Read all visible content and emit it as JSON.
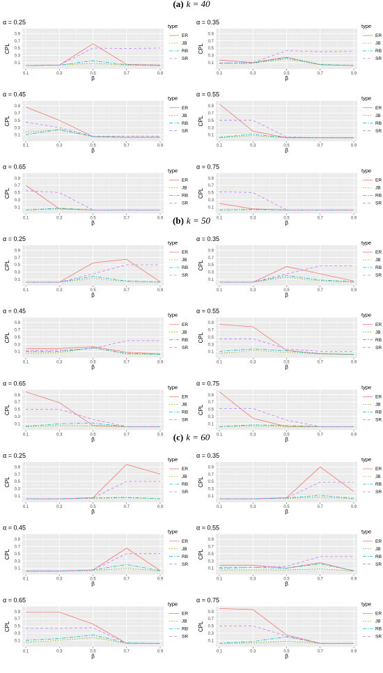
{
  "sections": [
    {
      "prefix": "(a)",
      "label": "k = 40"
    },
    {
      "prefix": "(b)",
      "label": "k = 50"
    },
    {
      "prefix": "(c)",
      "label": "k = 60"
    }
  ],
  "legend": {
    "title": "type",
    "items": [
      {
        "name": "ER",
        "color": "#f8766d",
        "dash": "solid"
      },
      {
        "name": "JB",
        "color": "#7cae00",
        "dash": "dotted"
      },
      {
        "name": "RB",
        "color": "#00bfc4",
        "dash": "dashdot"
      },
      {
        "name": "SR",
        "color": "#c77cff",
        "dash": "dashed"
      }
    ]
  },
  "axes": {
    "xlabel": "β",
    "ylabel": "CPL",
    "xticks": [
      "0.1",
      "0.3",
      "0.5",
      "0.7",
      "0.9"
    ],
    "yticks": [
      "0.1",
      "0.3",
      "0.5",
      "0.7",
      "0.9"
    ]
  },
  "chart_data": [
    {
      "type": "line",
      "section": "(a) k = 40",
      "title": "α = 0.25",
      "x": [
        0.1,
        0.3,
        0.5,
        0.7,
        0.9
      ],
      "xlabel": "β",
      "ylabel": "CPL",
      "ylim": [
        0,
        1
      ],
      "series": [
        {
          "name": "ER",
          "values": [
            0.02,
            0.03,
            0.62,
            0.05,
            0.03
          ]
        },
        {
          "name": "JB",
          "values": [
            0.02,
            0.03,
            0.08,
            0.03,
            0.02
          ]
        },
        {
          "name": "RB",
          "values": [
            0.02,
            0.03,
            0.15,
            0.04,
            0.02
          ]
        },
        {
          "name": "SR",
          "values": [
            0.02,
            0.03,
            0.5,
            0.49,
            0.5
          ]
        }
      ]
    },
    {
      "type": "line",
      "section": "(a) k = 40",
      "title": "α = 0.35",
      "x": [
        0.1,
        0.3,
        0.5,
        0.7,
        0.9
      ],
      "xlabel": "β",
      "ylabel": "CPL",
      "ylim": [
        0,
        1
      ],
      "series": [
        {
          "name": "ER",
          "values": [
            0.17,
            0.1,
            0.25,
            0.04,
            0.02
          ]
        },
        {
          "name": "JB",
          "values": [
            0.08,
            0.08,
            0.2,
            0.04,
            0.02
          ]
        },
        {
          "name": "RB",
          "values": [
            0.09,
            0.09,
            0.23,
            0.05,
            0.02
          ]
        },
        {
          "name": "SR",
          "values": [
            0.08,
            0.1,
            0.43,
            0.4,
            0.41
          ]
        }
      ]
    },
    {
      "type": "line",
      "section": "(a) k = 40",
      "title": "α = 0.45",
      "x": [
        0.1,
        0.3,
        0.5,
        0.7,
        0.9
      ],
      "xlabel": "β",
      "ylabel": "CPL",
      "ylim": [
        0,
        1
      ],
      "series": [
        {
          "name": "ER",
          "values": [
            0.87,
            0.5,
            0.05,
            0.03,
            0.03
          ]
        },
        {
          "name": "JB",
          "values": [
            0.18,
            0.23,
            0.05,
            0.03,
            0.03
          ]
        },
        {
          "name": "RB",
          "values": [
            0.1,
            0.25,
            0.05,
            0.03,
            0.03
          ]
        },
        {
          "name": "SR",
          "values": [
            0.45,
            0.3,
            0.06,
            0.06,
            0.06
          ]
        }
      ]
    },
    {
      "type": "line",
      "section": "(a) k = 40",
      "title": "α = 0.55",
      "x": [
        0.1,
        0.3,
        0.5,
        0.7,
        0.9
      ],
      "xlabel": "β",
      "ylabel": "CPL",
      "ylim": [
        0,
        1
      ],
      "series": [
        {
          "name": "ER",
          "values": [
            0.95,
            0.2,
            0.02,
            0.02,
            0.02
          ]
        },
        {
          "name": "JB",
          "values": [
            0.02,
            0.08,
            0.02,
            0.02,
            0.02
          ]
        },
        {
          "name": "RB",
          "values": [
            0.03,
            0.12,
            0.02,
            0.02,
            0.02
          ]
        },
        {
          "name": "SR",
          "values": [
            0.5,
            0.5,
            0.04,
            0.02,
            0.02
          ]
        }
      ]
    },
    {
      "type": "line",
      "section": "(a) k = 40",
      "title": "α = 0.65",
      "x": [
        0.1,
        0.3,
        0.5,
        0.7,
        0.9
      ],
      "xlabel": "β",
      "ylabel": "CPL",
      "ylim": [
        0,
        1
      ],
      "series": [
        {
          "name": "ER",
          "values": [
            0.7,
            0.05,
            0.02,
            0.02,
            0.02
          ]
        },
        {
          "name": "JB",
          "values": [
            0.02,
            0.05,
            0.02,
            0.02,
            0.02
          ]
        },
        {
          "name": "RB",
          "values": [
            0.02,
            0.07,
            0.02,
            0.02,
            0.02
          ]
        },
        {
          "name": "SR",
          "values": [
            0.55,
            0.5,
            0.02,
            0.02,
            0.02
          ]
        }
      ]
    },
    {
      "type": "line",
      "section": "(a) k = 40",
      "title": "α = 0.75",
      "x": [
        0.1,
        0.3,
        0.5,
        0.7,
        0.9
      ],
      "xlabel": "β",
      "ylabel": "CPL",
      "ylim": [
        0,
        1
      ],
      "series": [
        {
          "name": "ER",
          "values": [
            0.2,
            0.05,
            0.02,
            0.02,
            0.02
          ]
        },
        {
          "name": "JB",
          "values": [
            0.02,
            0.04,
            0.02,
            0.02,
            0.02
          ]
        },
        {
          "name": "RB",
          "values": [
            0.02,
            0.03,
            0.02,
            0.02,
            0.02
          ]
        },
        {
          "name": "SR",
          "values": [
            0.52,
            0.5,
            0.02,
            0.02,
            0.02
          ]
        }
      ]
    },
    {
      "type": "line",
      "section": "(b) k = 50",
      "title": "α = 0.25",
      "x": [
        0.1,
        0.3,
        0.5,
        0.7,
        0.9
      ],
      "xlabel": "β",
      "ylabel": "CPL",
      "ylim": [
        0,
        1
      ],
      "series": [
        {
          "name": "ER",
          "values": [
            0.02,
            0.02,
            0.55,
            0.65,
            0.03
          ]
        },
        {
          "name": "JB",
          "values": [
            0.02,
            0.02,
            0.12,
            0.04,
            0.02
          ]
        },
        {
          "name": "RB",
          "values": [
            0.02,
            0.02,
            0.18,
            0.05,
            0.02
          ]
        },
        {
          "name": "SR",
          "values": [
            0.02,
            0.02,
            0.25,
            0.5,
            0.5
          ]
        }
      ]
    },
    {
      "type": "line",
      "section": "(b) k = 50",
      "title": "α = 0.35",
      "x": [
        0.1,
        0.3,
        0.5,
        0.7,
        0.9
      ],
      "xlabel": "β",
      "ylabel": "CPL",
      "ylim": [
        0,
        1
      ],
      "series": [
        {
          "name": "ER",
          "values": [
            0.02,
            0.02,
            0.45,
            0.25,
            0.05
          ]
        },
        {
          "name": "JB",
          "values": [
            0.02,
            0.02,
            0.15,
            0.06,
            0.02
          ]
        },
        {
          "name": "RB",
          "values": [
            0.02,
            0.02,
            0.2,
            0.08,
            0.03
          ]
        },
        {
          "name": "SR",
          "values": [
            0.02,
            0.02,
            0.25,
            0.47,
            0.47
          ]
        }
      ]
    },
    {
      "type": "line",
      "section": "(b) k = 50",
      "title": "α = 0.45",
      "x": [
        0.1,
        0.3,
        0.5,
        0.7,
        0.9
      ],
      "xlabel": "β",
      "ylabel": "CPL",
      "ylim": [
        0,
        1
      ],
      "series": [
        {
          "name": "ER",
          "values": [
            0.18,
            0.18,
            0.23,
            0.08,
            0.03
          ]
        },
        {
          "name": "JB",
          "values": [
            0.05,
            0.07,
            0.2,
            0.03,
            0.02
          ]
        },
        {
          "name": "RB",
          "values": [
            0.1,
            0.1,
            0.2,
            0.05,
            0.02
          ]
        },
        {
          "name": "SR",
          "values": [
            0.12,
            0.13,
            0.18,
            0.4,
            0.4
          ]
        }
      ]
    },
    {
      "type": "line",
      "section": "(b) k = 50",
      "title": "α = 0.55",
      "x": [
        0.1,
        0.3,
        0.5,
        0.7,
        0.9
      ],
      "xlabel": "β",
      "ylabel": "CPL",
      "ylim": [
        0,
        1
      ],
      "series": [
        {
          "name": "ER",
          "values": [
            0.85,
            0.78,
            0.13,
            0.04,
            0.02
          ]
        },
        {
          "name": "JB",
          "values": [
            0.05,
            0.12,
            0.08,
            0.03,
            0.02
          ]
        },
        {
          "name": "RB",
          "values": [
            0.1,
            0.17,
            0.12,
            0.04,
            0.02
          ]
        },
        {
          "name": "SR",
          "values": [
            0.45,
            0.45,
            0.17,
            0.1,
            0.1
          ]
        }
      ]
    },
    {
      "type": "line",
      "section": "(b) k = 50",
      "title": "α = 0.65",
      "x": [
        0.1,
        0.3,
        0.5,
        0.7,
        0.9
      ],
      "xlabel": "β",
      "ylabel": "CPL",
      "ylim": [
        0,
        1
      ],
      "series": [
        {
          "name": "ER",
          "values": [
            0.98,
            0.68,
            0.05,
            0.02,
            0.02
          ]
        },
        {
          "name": "JB",
          "values": [
            0.02,
            0.05,
            0.04,
            0.02,
            0.02
          ]
        },
        {
          "name": "RB",
          "values": [
            0.03,
            0.1,
            0.12,
            0.02,
            0.02
          ]
        },
        {
          "name": "SR",
          "values": [
            0.5,
            0.5,
            0.22,
            0.02,
            0.02
          ]
        }
      ]
    },
    {
      "type": "line",
      "section": "(b) k = 50",
      "title": "α = 0.75",
      "x": [
        0.1,
        0.3,
        0.5,
        0.7,
        0.9
      ],
      "xlabel": "β",
      "ylabel": "CPL",
      "ylim": [
        0,
        1
      ],
      "series": [
        {
          "name": "ER",
          "values": [
            0.98,
            0.25,
            0.02,
            0.02,
            0.02
          ]
        },
        {
          "name": "JB",
          "values": [
            0.02,
            0.04,
            0.02,
            0.02,
            0.02
          ]
        },
        {
          "name": "RB",
          "values": [
            0.02,
            0.07,
            0.05,
            0.02,
            0.02
          ]
        },
        {
          "name": "SR",
          "values": [
            0.52,
            0.52,
            0.2,
            0.02,
            0.02
          ]
        }
      ]
    },
    {
      "type": "line",
      "section": "(c) k = 60",
      "title": "α = 0.25",
      "x": [
        0.1,
        0.3,
        0.5,
        0.7,
        0.9
      ],
      "xlabel": "β",
      "ylabel": "CPL",
      "ylim": [
        0,
        1
      ],
      "series": [
        {
          "name": "ER",
          "values": [
            0.02,
            0.02,
            0.05,
            0.97,
            0.7
          ]
        },
        {
          "name": "JB",
          "values": [
            0.02,
            0.02,
            0.03,
            0.05,
            0.02
          ]
        },
        {
          "name": "RB",
          "values": [
            0.02,
            0.02,
            0.04,
            0.06,
            0.02
          ]
        },
        {
          "name": "SR",
          "values": [
            0.02,
            0.02,
            0.04,
            0.5,
            0.5
          ]
        }
      ]
    },
    {
      "type": "line",
      "section": "(c) k = 60",
      "title": "α = 0.35",
      "x": [
        0.1,
        0.3,
        0.5,
        0.7,
        0.9
      ],
      "xlabel": "β",
      "ylabel": "CPL",
      "ylim": [
        0,
        1
      ],
      "series": [
        {
          "name": "ER",
          "values": [
            0.02,
            0.02,
            0.05,
            0.9,
            0.22
          ]
        },
        {
          "name": "JB",
          "values": [
            0.02,
            0.02,
            0.03,
            0.07,
            0.02
          ]
        },
        {
          "name": "RB",
          "values": [
            0.02,
            0.02,
            0.04,
            0.12,
            0.03
          ]
        },
        {
          "name": "SR",
          "values": [
            0.02,
            0.02,
            0.04,
            0.48,
            0.48
          ]
        }
      ]
    },
    {
      "type": "line",
      "section": "(c) k = 60",
      "title": "α = 0.45",
      "x": [
        0.1,
        0.3,
        0.5,
        0.7,
        0.9
      ],
      "xlabel": "β",
      "ylabel": "CPL",
      "ylim": [
        0,
        1
      ],
      "series": [
        {
          "name": "ER",
          "values": [
            0.02,
            0.02,
            0.05,
            0.65,
            0.03
          ]
        },
        {
          "name": "JB",
          "values": [
            0.02,
            0.02,
            0.03,
            0.1,
            0.02
          ]
        },
        {
          "name": "RB",
          "values": [
            0.02,
            0.02,
            0.05,
            0.2,
            0.03
          ]
        },
        {
          "name": "SR",
          "values": [
            0.02,
            0.02,
            0.05,
            0.5,
            0.5
          ]
        }
      ]
    },
    {
      "type": "line",
      "section": "(c) k = 60",
      "title": "α = 0.55",
      "x": [
        0.1,
        0.3,
        0.5,
        0.7,
        0.9
      ],
      "xlabel": "β",
      "ylabel": "CPL",
      "ylim": [
        0,
        1
      ],
      "series": [
        {
          "name": "ER",
          "values": [
            0.18,
            0.18,
            0.1,
            0.25,
            0.02
          ]
        },
        {
          "name": "JB",
          "values": [
            0.05,
            0.05,
            0.05,
            0.08,
            0.02
          ]
        },
        {
          "name": "RB",
          "values": [
            0.1,
            0.12,
            0.1,
            0.22,
            0.03
          ]
        },
        {
          "name": "SR",
          "values": [
            0.12,
            0.12,
            0.15,
            0.42,
            0.42
          ]
        }
      ]
    },
    {
      "type": "line",
      "section": "(c) k = 60",
      "title": "α = 0.65",
      "x": [
        0.1,
        0.3,
        0.5,
        0.7,
        0.9
      ],
      "xlabel": "β",
      "ylabel": "CPL",
      "ylim": [
        0,
        1
      ],
      "series": [
        {
          "name": "ER",
          "values": [
            0.88,
            0.88,
            0.55,
            0.02,
            0.02
          ]
        },
        {
          "name": "JB",
          "values": [
            0.05,
            0.1,
            0.18,
            0.02,
            0.02
          ]
        },
        {
          "name": "RB",
          "values": [
            0.1,
            0.15,
            0.25,
            0.03,
            0.02
          ]
        },
        {
          "name": "SR",
          "values": [
            0.43,
            0.43,
            0.45,
            0.02,
            0.02
          ]
        }
      ]
    },
    {
      "type": "line",
      "section": "(c) k = 60",
      "title": "α = 0.75",
      "x": [
        0.1,
        0.3,
        0.5,
        0.7,
        0.9
      ],
      "xlabel": "β",
      "ylabel": "CPL",
      "ylim": [
        0,
        1
      ],
      "series": [
        {
          "name": "ER",
          "values": [
            0.98,
            0.95,
            0.25,
            0.02,
            0.02
          ]
        },
        {
          "name": "JB",
          "values": [
            0.02,
            0.03,
            0.08,
            0.02,
            0.02
          ]
        },
        {
          "name": "RB",
          "values": [
            0.02,
            0.07,
            0.2,
            0.02,
            0.02
          ]
        },
        {
          "name": "SR",
          "values": [
            0.5,
            0.5,
            0.22,
            0.02,
            0.02
          ]
        }
      ]
    }
  ]
}
